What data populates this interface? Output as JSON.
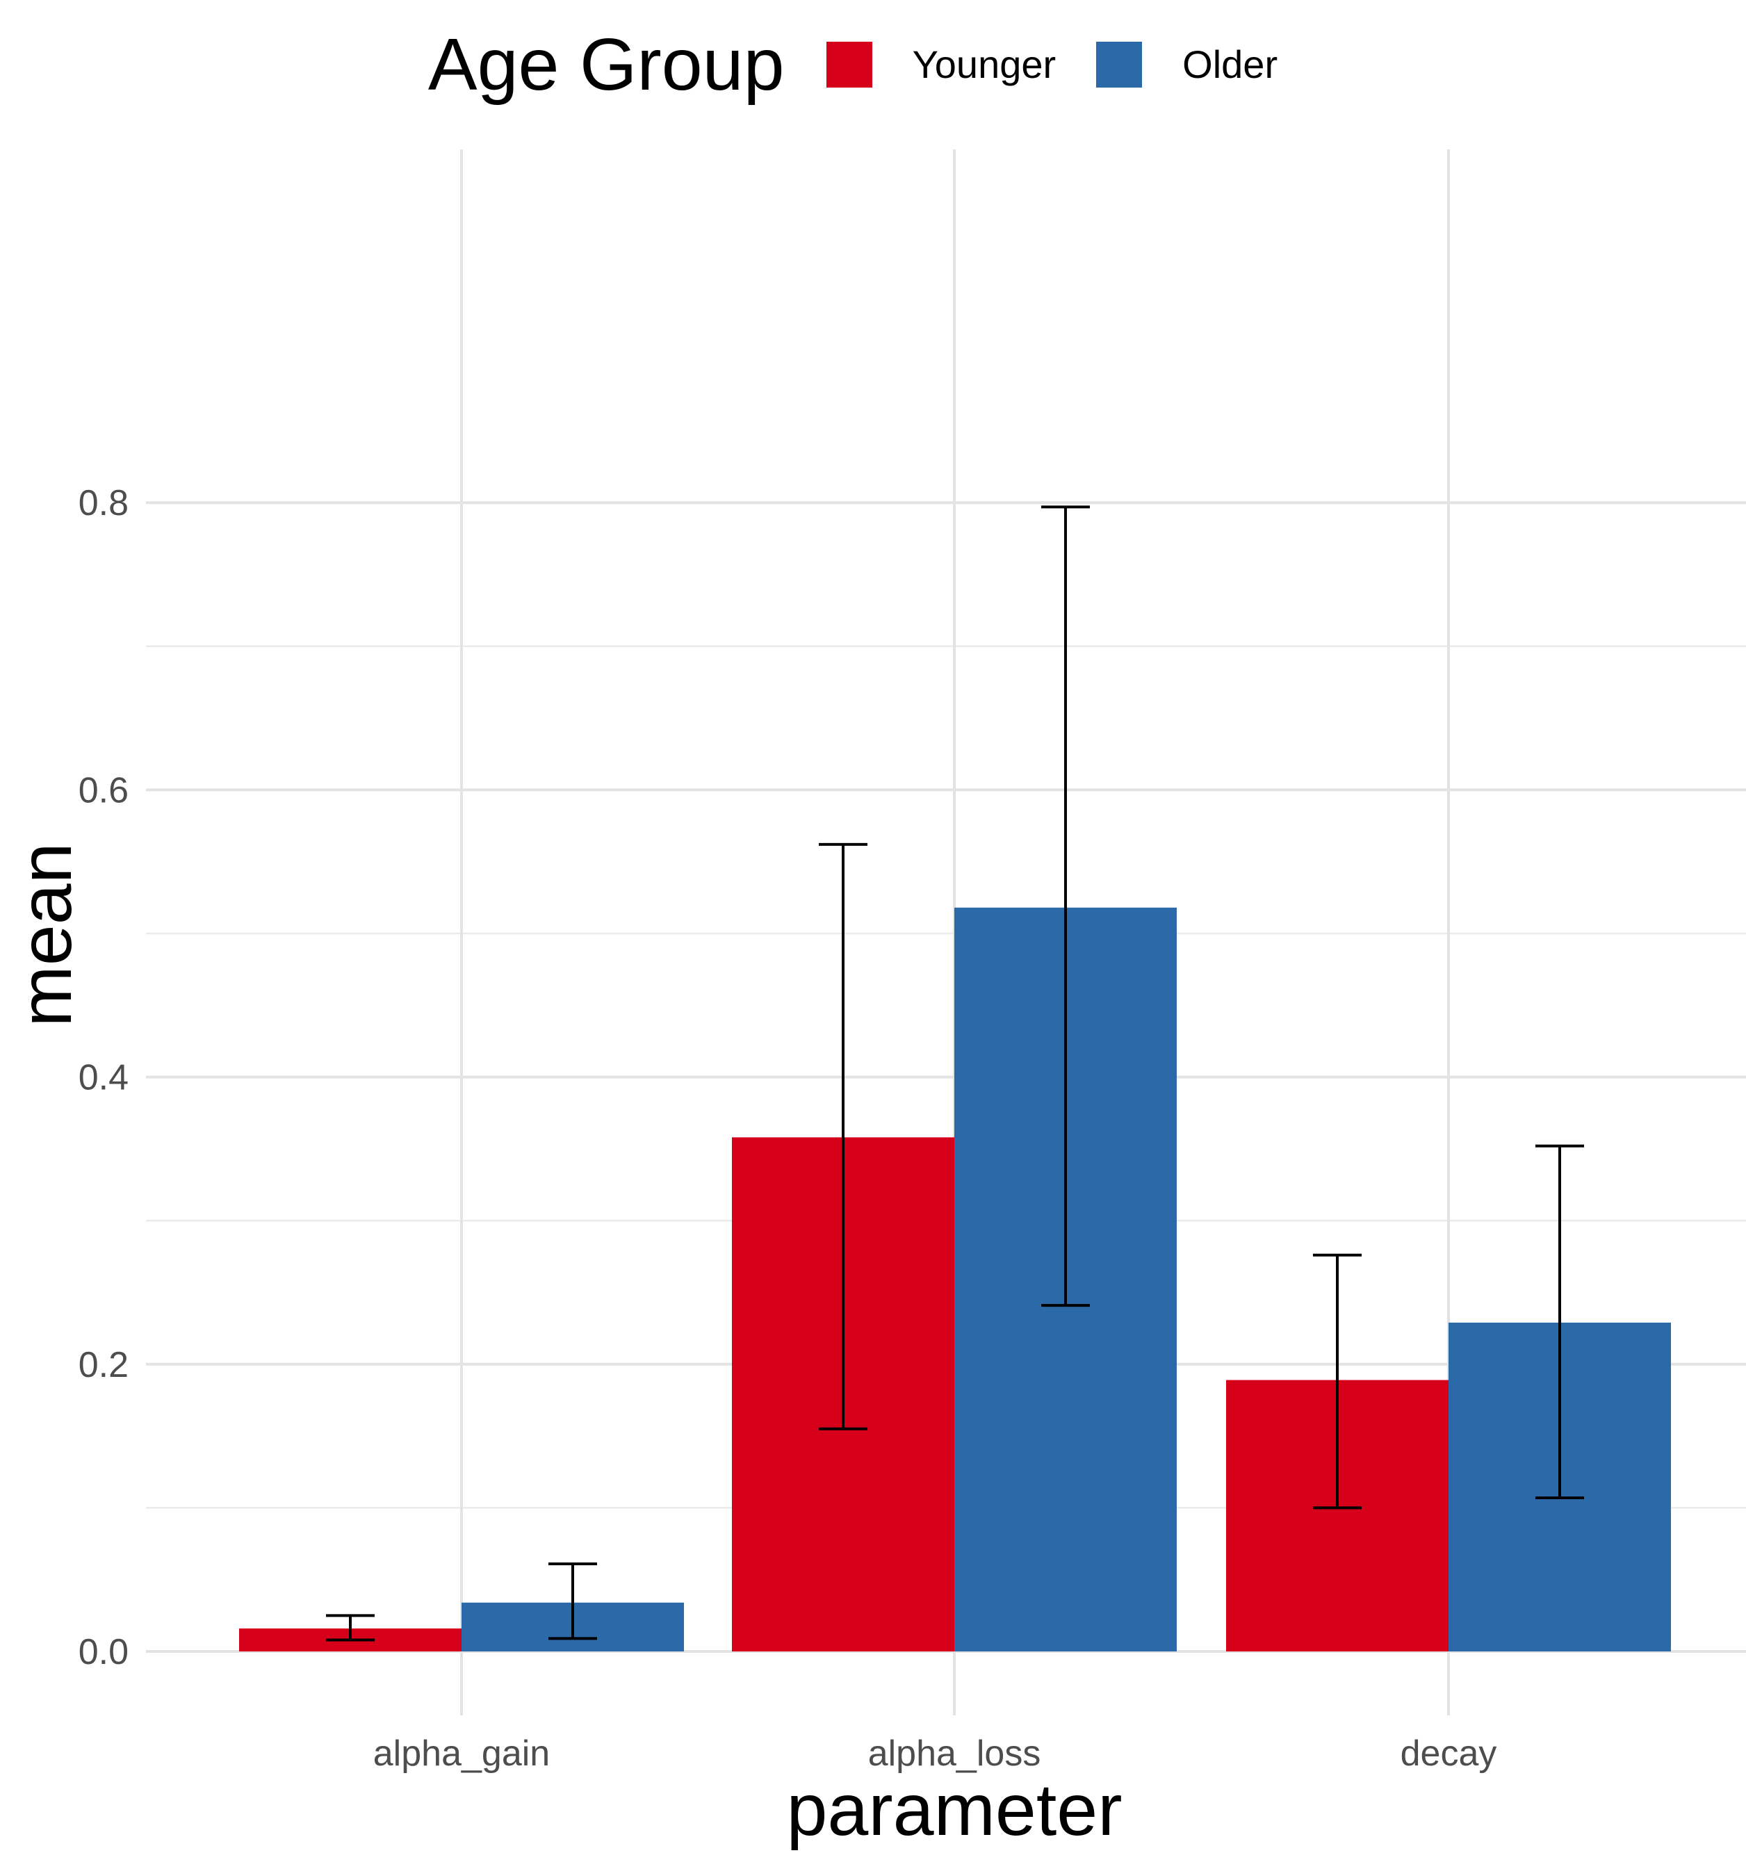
{
  "chart_data": {
    "type": "bar",
    "categories": [
      "alpha_gain",
      "alpha_loss",
      "decay"
    ],
    "series": [
      {
        "name": "Younger",
        "color": "#D7001A",
        "values": [
          0.016,
          0.358,
          0.189
        ],
        "error_low": [
          0.008,
          0.155,
          0.1
        ],
        "error_high": [
          0.025,
          0.562,
          0.276
        ]
      },
      {
        "name": "Older",
        "color": "#2C69A8",
        "values": [
          0.034,
          0.518,
          0.229
        ],
        "error_low": [
          0.009,
          0.241,
          0.107
        ],
        "error_high": [
          0.061,
          0.797,
          0.352
        ]
      }
    ],
    "xlabel": "parameter",
    "ylabel": "mean",
    "ylim": [
      -0.036,
      0.836
    ],
    "yticks": [
      "0.0",
      "0.2",
      "0.4",
      "0.6",
      "0.8"
    ],
    "legend_title": "Age Group",
    "legend_position": "top",
    "grid": true
  }
}
